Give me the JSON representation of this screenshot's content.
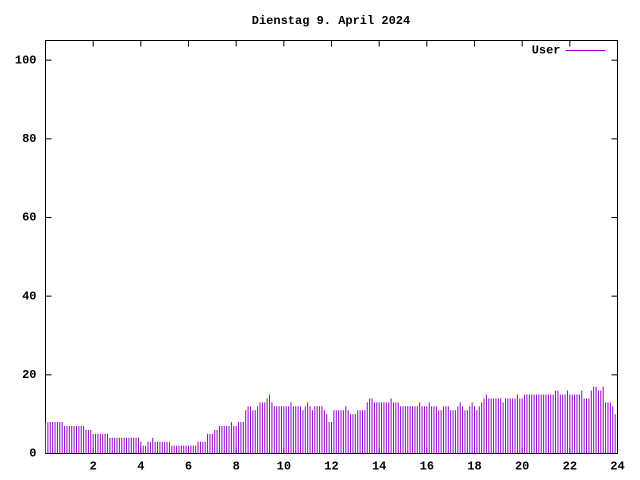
{
  "chart_data": {
    "type": "impulses",
    "title": "Dienstag 9. April 2024",
    "x": [
      0,
      0.1,
      0.2,
      0.3,
      0.4,
      0.5,
      0.6,
      0.7,
      0.8,
      0.9,
      1,
      1.1,
      1.2,
      1.3,
      1.4,
      1.5,
      1.6,
      1.7,
      1.8,
      1.9,
      2,
      2.1,
      2.2,
      2.3,
      2.4,
      2.5,
      2.6,
      2.7,
      2.8,
      2.9,
      3,
      3.1,
      3.2,
      3.3,
      3.4,
      3.5,
      3.6,
      3.7,
      3.8,
      3.9,
      4,
      4.1,
      4.2,
      4.3,
      4.4,
      4.5,
      4.6,
      4.7,
      4.8,
      4.9,
      5,
      5.1,
      5.2,
      5.3,
      5.4,
      5.5,
      5.6,
      5.7,
      5.8,
      5.9,
      6,
      6.1,
      6.2,
      6.3,
      6.4,
      6.5,
      6.6,
      6.7,
      6.8,
      6.9,
      7,
      7.1,
      7.2,
      7.3,
      7.4,
      7.5,
      7.6,
      7.7,
      7.8,
      7.9,
      8,
      8.1,
      8.2,
      8.3,
      8.4,
      8.5,
      8.6,
      8.7,
      8.8,
      8.9,
      9,
      9.1,
      9.2,
      9.3,
      9.4,
      9.5,
      9.6,
      9.7,
      9.8,
      9.9,
      10,
      10.1,
      10.2,
      10.3,
      10.4,
      10.5,
      10.6,
      10.7,
      10.8,
      10.9,
      11,
      11.1,
      11.2,
      11.3,
      11.4,
      11.5,
      11.6,
      11.7,
      11.8,
      11.9,
      12,
      12.1,
      12.2,
      12.3,
      12.4,
      12.5,
      12.6,
      12.7,
      12.8,
      12.9,
      13,
      13.1,
      13.2,
      13.3,
      13.4,
      13.5,
      13.6,
      13.7,
      13.8,
      13.9,
      14,
      14.1,
      14.2,
      14.3,
      14.4,
      14.5,
      14.6,
      14.7,
      14.8,
      14.9,
      15,
      15.1,
      15.2,
      15.3,
      15.4,
      15.5,
      15.6,
      15.7,
      15.8,
      15.9,
      16,
      16.1,
      16.2,
      16.3,
      16.4,
      16.5,
      16.6,
      16.7,
      16.8,
      16.9,
      17,
      17.1,
      17.2,
      17.3,
      17.4,
      17.5,
      17.6,
      17.7,
      17.8,
      17.9,
      18,
      18.1,
      18.2,
      18.3,
      18.4,
      18.5,
      18.6,
      18.7,
      18.8,
      18.9,
      19,
      19.1,
      19.2,
      19.3,
      19.4,
      19.5,
      19.6,
      19.7,
      19.8,
      19.9,
      20,
      20.1,
      20.2,
      20.3,
      20.4,
      20.5,
      20.6,
      20.7,
      20.8,
      20.9,
      21,
      21.1,
      21.2,
      21.3,
      21.4,
      21.5,
      21.6,
      21.7,
      21.8,
      21.9,
      22,
      22.1,
      22.2,
      22.3,
      22.4,
      22.5,
      22.6,
      22.7,
      22.8,
      22.9,
      23,
      23.1,
      23.2,
      23.3,
      23.4,
      23.5,
      23.6,
      23.7,
      23.8,
      23.9
    ],
    "series": [
      {
        "name": "User",
        "color": "#9400d3",
        "values": [
          8,
          8,
          8,
          8,
          8,
          8,
          8,
          8,
          7,
          7,
          7,
          7,
          7,
          7,
          7,
          7,
          7,
          6,
          6,
          6,
          5,
          5,
          5,
          5,
          5,
          5,
          5,
          4,
          4,
          4,
          4,
          4,
          4,
          4,
          4,
          4,
          4,
          4,
          4,
          4,
          3,
          2,
          2,
          3,
          3,
          4,
          3,
          3,
          3,
          3,
          3,
          3,
          3,
          2,
          2,
          2,
          2,
          2,
          2,
          2,
          2,
          2,
          2,
          2,
          3,
          3,
          3,
          3,
          5,
          5,
          5,
          6,
          6,
          7,
          7,
          7,
          7,
          7,
          8,
          7,
          7,
          8,
          8,
          8,
          11,
          12,
          12,
          11,
          11,
          12,
          13,
          13,
          13,
          14,
          15,
          13,
          12,
          12,
          12,
          12,
          12,
          12,
          12,
          13,
          12,
          12,
          12,
          12,
          11,
          12,
          13,
          12,
          11,
          12,
          12,
          12,
          12,
          11,
          10,
          8,
          8,
          11,
          11,
          11,
          11,
          11,
          12,
          11,
          10,
          10,
          10,
          11,
          11,
          11,
          11,
          13,
          14,
          14,
          13,
          13,
          13,
          13,
          13,
          13,
          13,
          14,
          13,
          13,
          13,
          12,
          12,
          12,
          12,
          12,
          12,
          12,
          12,
          13,
          12,
          12,
          12,
          13,
          12,
          12,
          12,
          11,
          11,
          12,
          12,
          12,
          11,
          11,
          11,
          12,
          13,
          12,
          11,
          11,
          12,
          13,
          12,
          11,
          12,
          13,
          14,
          15,
          14,
          14,
          14,
          14,
          14,
          14,
          13,
          14,
          14,
          14,
          14,
          14,
          15,
          14,
          14,
          15,
          15,
          15,
          15,
          15,
          15,
          15,
          15,
          15,
          15,
          15,
          15,
          15,
          16,
          16,
          15,
          15,
          15,
          16,
          15,
          15,
          15,
          15,
          15,
          16,
          14,
          14,
          14,
          16,
          17,
          17,
          16,
          16,
          17,
          13,
          13,
          13,
          12,
          10
        ]
      }
    ],
    "xlim": [
      0,
      24
    ],
    "xticks": [
      2,
      4,
      6,
      8,
      10,
      12,
      14,
      16,
      18,
      20,
      22,
      24
    ],
    "ylim": [
      0,
      105
    ],
    "yticks": [
      0,
      20,
      40,
      60,
      80,
      100
    ],
    "legend": "top right"
  }
}
